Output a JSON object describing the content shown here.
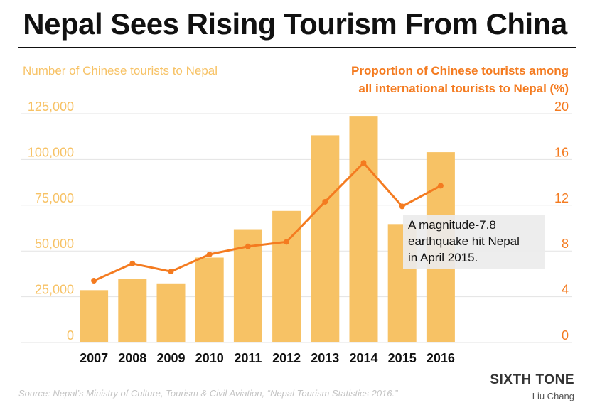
{
  "title": "Nepal Sees Rising Tourism From China",
  "chart_data": {
    "type": "bar",
    "categories": [
      "2007",
      "2008",
      "2009",
      "2010",
      "2011",
      "2012",
      "2013",
      "2014",
      "2015",
      "2016"
    ],
    "series": [
      {
        "name": "Number of Chinese tourists to Nepal",
        "type": "bar",
        "axis": "left",
        "color": "#f7c265",
        "values": [
          28600,
          34800,
          32300,
          46400,
          61900,
          71900,
          113200,
          123800,
          64700,
          104000
        ]
      },
      {
        "name": "Proportion of Chinese tourists among all international tourists to Nepal (%)",
        "type": "line",
        "axis": "right",
        "color": "#f47b20",
        "values": [
          5.4,
          6.9,
          6.2,
          7.7,
          8.4,
          8.8,
          12.3,
          15.7,
          11.9,
          13.7
        ]
      }
    ],
    "left_axis": {
      "label": "Number of Chinese tourists to Nepal",
      "ylim": [
        0,
        125000
      ],
      "ticks": [
        "0",
        "25,000",
        "50,000",
        "75,000",
        "100,000",
        "125,000"
      ],
      "tick_values": [
        0,
        25000,
        50000,
        75000,
        100000,
        125000
      ],
      "color": "#f7c265"
    },
    "right_axis": {
      "label_lines": [
        "Proportion of Chinese tourists among",
        "all international tourists to Nepal (%)"
      ],
      "ylim": [
        0,
        20
      ],
      "ticks": [
        "0",
        "4",
        "8",
        "12",
        "16",
        "20"
      ],
      "tick_values": [
        0,
        4,
        8,
        12,
        16,
        20
      ],
      "color": "#f47b20"
    },
    "annotation": {
      "lines": [
        "A magnitude-7.8",
        "earthquake hit Nepal",
        "in April 2015."
      ]
    },
    "grid": true
  },
  "footer": {
    "source": "Source: Nepal’s Ministry of Culture, Tourism & Civil Aviation, “Nepal Tourism Statistics 2016.”",
    "brand": "SIXTH TONE",
    "author": "Liu Chang"
  }
}
